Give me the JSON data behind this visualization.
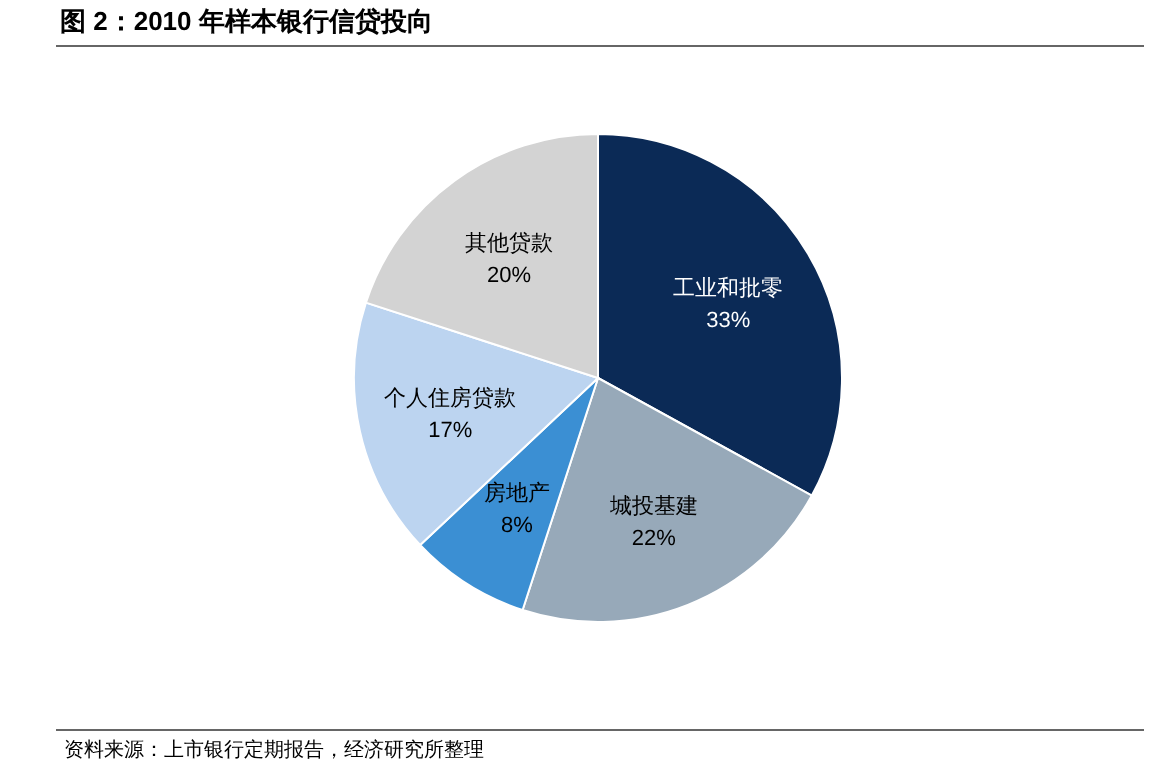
{
  "chart_data": {
    "type": "pie",
    "title": "图 2：2010 年样本银行信贷投向",
    "categories": [
      "工业和批零",
      "城投基建",
      "房地产",
      "个人住房贷款",
      "其他贷款"
    ],
    "values": [
      33,
      22,
      8,
      17,
      20
    ],
    "colors": [
      "#0b2a56",
      "#97a9b9",
      "#3b8fd3",
      "#bcd4f0",
      "#d3d3d3"
    ],
    "value_labels": [
      "33%",
      "22%",
      "8%",
      "17%",
      "20%"
    ],
    "annotations": [
      "资料来源：上市银行定期报告，经济研究所整理"
    ]
  }
}
